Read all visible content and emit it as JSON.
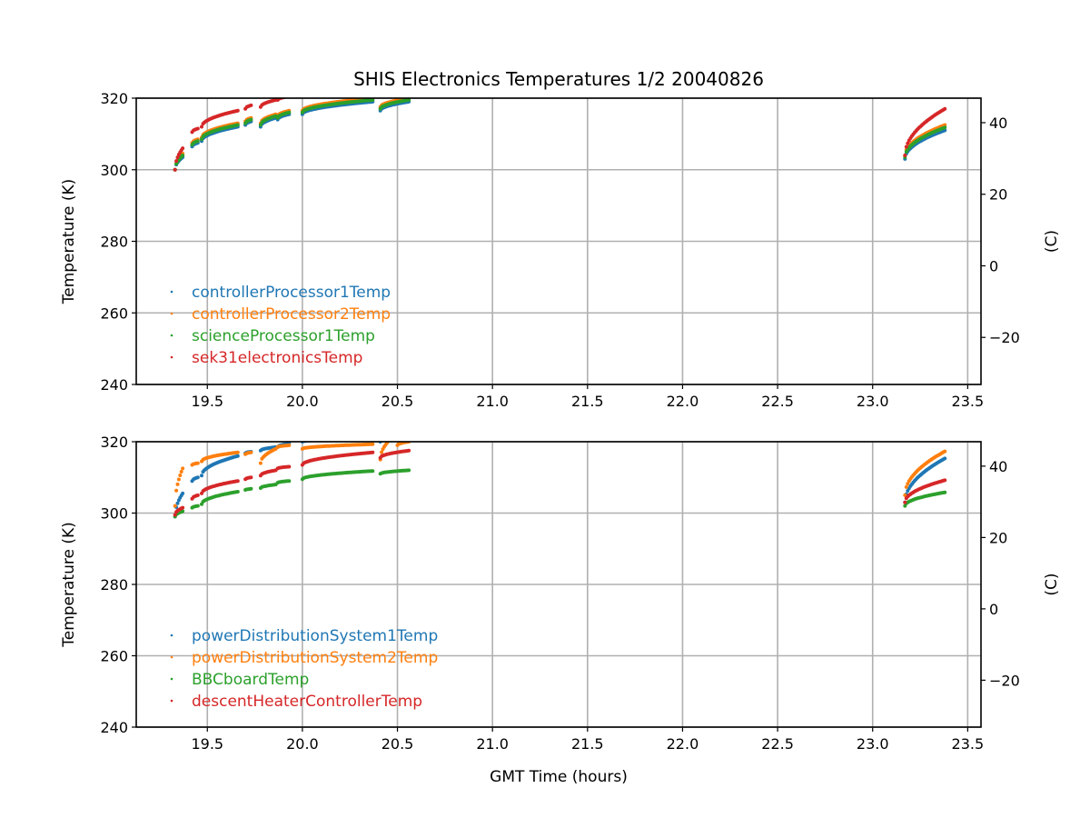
{
  "chart_data": [
    {
      "type": "scatter",
      "title": "SHIS Electronics Temperatures 1/2 20040826",
      "xlabel": "",
      "ylabel": "Temperature (K)",
      "ylabel_right": "(C)",
      "xlim": [
        19.126,
        23.57
      ],
      "ylim": [
        240,
        320
      ],
      "xticks": [
        "19.5",
        "20.0",
        "20.5",
        "21.0",
        "21.5",
        "22.0",
        "22.5",
        "23.0",
        "23.5"
      ],
      "yticks": [
        "240",
        "260",
        "280",
        "300",
        "320"
      ],
      "yticks_right": [
        "−20",
        "0",
        "20",
        "40"
      ],
      "grid": true,
      "legend_placement": "lower-left",
      "series": [
        {
          "name": "controllerProcessor1Temp",
          "color": "#1f77b4",
          "segments": [
            [
              19.33,
              19.37,
              300,
              303.5
            ],
            [
              19.42,
              19.45,
              306.5,
              307.5
            ],
            [
              19.47,
              19.66,
              308,
              312
            ],
            [
              19.7,
              19.73,
              312.5,
              313.5
            ],
            [
              19.78,
              19.86,
              312,
              314.5
            ],
            [
              19.87,
              19.93,
              314,
              315.5
            ],
            [
              20.0,
              20.37,
              315.5,
              319
            ],
            [
              20.41,
              20.56,
              316.5,
              319
            ],
            [
              23.17,
              23.38,
              303,
              311
            ]
          ]
        },
        {
          "name": "controllerProcessor2Temp",
          "color": "#ff7f0e",
          "segments": [
            [
              19.33,
              19.37,
              300,
              304.5
            ],
            [
              19.42,
              19.45,
              307.5,
              308.5
            ],
            [
              19.47,
              19.66,
              309,
              313
            ],
            [
              19.7,
              19.73,
              313.5,
              314.5
            ],
            [
              19.78,
              19.86,
              313,
              315.5
            ],
            [
              19.87,
              19.93,
              315,
              316.5
            ],
            [
              20.0,
              20.37,
              316.5,
              320
            ],
            [
              20.41,
              20.56,
              317.5,
              320
            ],
            [
              23.17,
              23.38,
              304,
              312.5
            ]
          ]
        },
        {
          "name": "scienceProcessor1Temp",
          "color": "#2ca02c",
          "segments": [
            [
              19.33,
              19.37,
              300,
              304
            ],
            [
              19.42,
              19.45,
              307,
              308
            ],
            [
              19.47,
              19.66,
              308.5,
              312.5
            ],
            [
              19.7,
              19.73,
              313,
              314
            ],
            [
              19.78,
              19.86,
              312.5,
              315
            ],
            [
              19.87,
              19.93,
              314.5,
              316
            ],
            [
              20.0,
              20.37,
              316,
              319.5
            ],
            [
              20.41,
              20.56,
              317,
              319.5
            ],
            [
              23.17,
              23.38,
              303.5,
              311.8
            ]
          ]
        },
        {
          "name": "sek31electronicsTemp",
          "color": "#d62728",
          "segments": [
            [
              19.33,
              19.37,
              300,
              306
            ],
            [
              19.42,
              19.45,
              310.5,
              311.5
            ],
            [
              19.47,
              19.66,
              312,
              316.5
            ],
            [
              19.7,
              19.73,
              317,
              318
            ],
            [
              19.78,
              19.86,
              317.5,
              319.5
            ],
            [
              19.87,
              19.93,
              319.5,
              320.5
            ],
            [
              23.17,
              23.38,
              304,
              317
            ]
          ]
        }
      ]
    },
    {
      "type": "scatter",
      "xlabel": "GMT Time (hours)",
      "ylabel": "Temperature (K)",
      "ylabel_right": "(C)",
      "xlim": [
        19.126,
        23.57
      ],
      "ylim": [
        240,
        320
      ],
      "xticks": [
        "19.5",
        "20.0",
        "20.5",
        "21.0",
        "21.5",
        "22.0",
        "22.5",
        "23.0",
        "23.5"
      ],
      "yticks": [
        "240",
        "260",
        "280",
        "300",
        "320"
      ],
      "yticks_right": [
        "−20",
        "0",
        "20",
        "40"
      ],
      "grid": true,
      "legend_placement": "lower-left",
      "series": [
        {
          "name": "powerDistributionSystem1Temp",
          "color": "#1f77b4",
          "segments": [
            [
              19.33,
              19.37,
              299,
              305.5
            ],
            [
              19.42,
              19.45,
              309,
              310
            ],
            [
              19.47,
              19.66,
              310.5,
              316
            ],
            [
              19.7,
              19.73,
              316.8,
              317.2
            ],
            [
              19.78,
              19.86,
              317.5,
              318.5
            ],
            [
              19.87,
              19.93,
              318.5,
              319.5
            ],
            [
              20.0,
              20.37,
              320,
              321
            ],
            [
              20.41,
              20.45,
              320,
              321
            ],
            [
              23.17,
              23.38,
              303,
              315.3
            ]
          ]
        },
        {
          "name": "powerDistributionSystem2Temp",
          "color": "#ff7f0e",
          "segments": [
            [
              19.33,
              19.37,
              302,
              312.5
            ],
            [
              19.42,
              19.45,
              313.5,
              314
            ],
            [
              19.47,
              19.66,
              314.5,
              317
            ],
            [
              19.7,
              19.73,
              316.5,
              317
            ],
            [
              19.78,
              19.86,
              314,
              318
            ],
            [
              19.87,
              19.93,
              318.5,
              319
            ],
            [
              20.0,
              20.37,
              318,
              319.3
            ],
            [
              20.41,
              20.45,
              315,
              320
            ],
            [
              20.5,
              20.56,
              319,
              320
            ],
            [
              23.17,
              23.38,
              305,
              317.3
            ]
          ]
        },
        {
          "name": "BBCboardTemp",
          "color": "#2ca02c",
          "segments": [
            [
              19.33,
              19.37,
              299,
              300.5
            ],
            [
              19.42,
              19.45,
              301.5,
              302
            ],
            [
              19.47,
              19.66,
              302.5,
              306
            ],
            [
              19.7,
              19.73,
              306.5,
              306.8
            ],
            [
              19.78,
              19.86,
              307,
              308
            ],
            [
              19.87,
              19.93,
              308.5,
              309
            ],
            [
              20.0,
              20.37,
              309.5,
              311.8
            ],
            [
              20.41,
              20.56,
              311,
              312
            ],
            [
              23.17,
              23.38,
              302,
              305.8
            ]
          ]
        },
        {
          "name": "descentHeaterControllerTemp",
          "color": "#d62728",
          "segments": [
            [
              19.33,
              19.37,
              299.5,
              301.5
            ],
            [
              19.42,
              19.45,
              304,
              305
            ],
            [
              19.47,
              19.66,
              305.5,
              309
            ],
            [
              19.7,
              19.73,
              309.5,
              310
            ],
            [
              19.78,
              19.86,
              310.5,
              312
            ],
            [
              19.87,
              19.93,
              312.5,
              313
            ],
            [
              20.0,
              20.37,
              313.5,
              317
            ],
            [
              20.41,
              20.56,
              315.5,
              317.5
            ],
            [
              23.17,
              23.38,
              303,
              309.2
            ]
          ]
        }
      ]
    }
  ]
}
